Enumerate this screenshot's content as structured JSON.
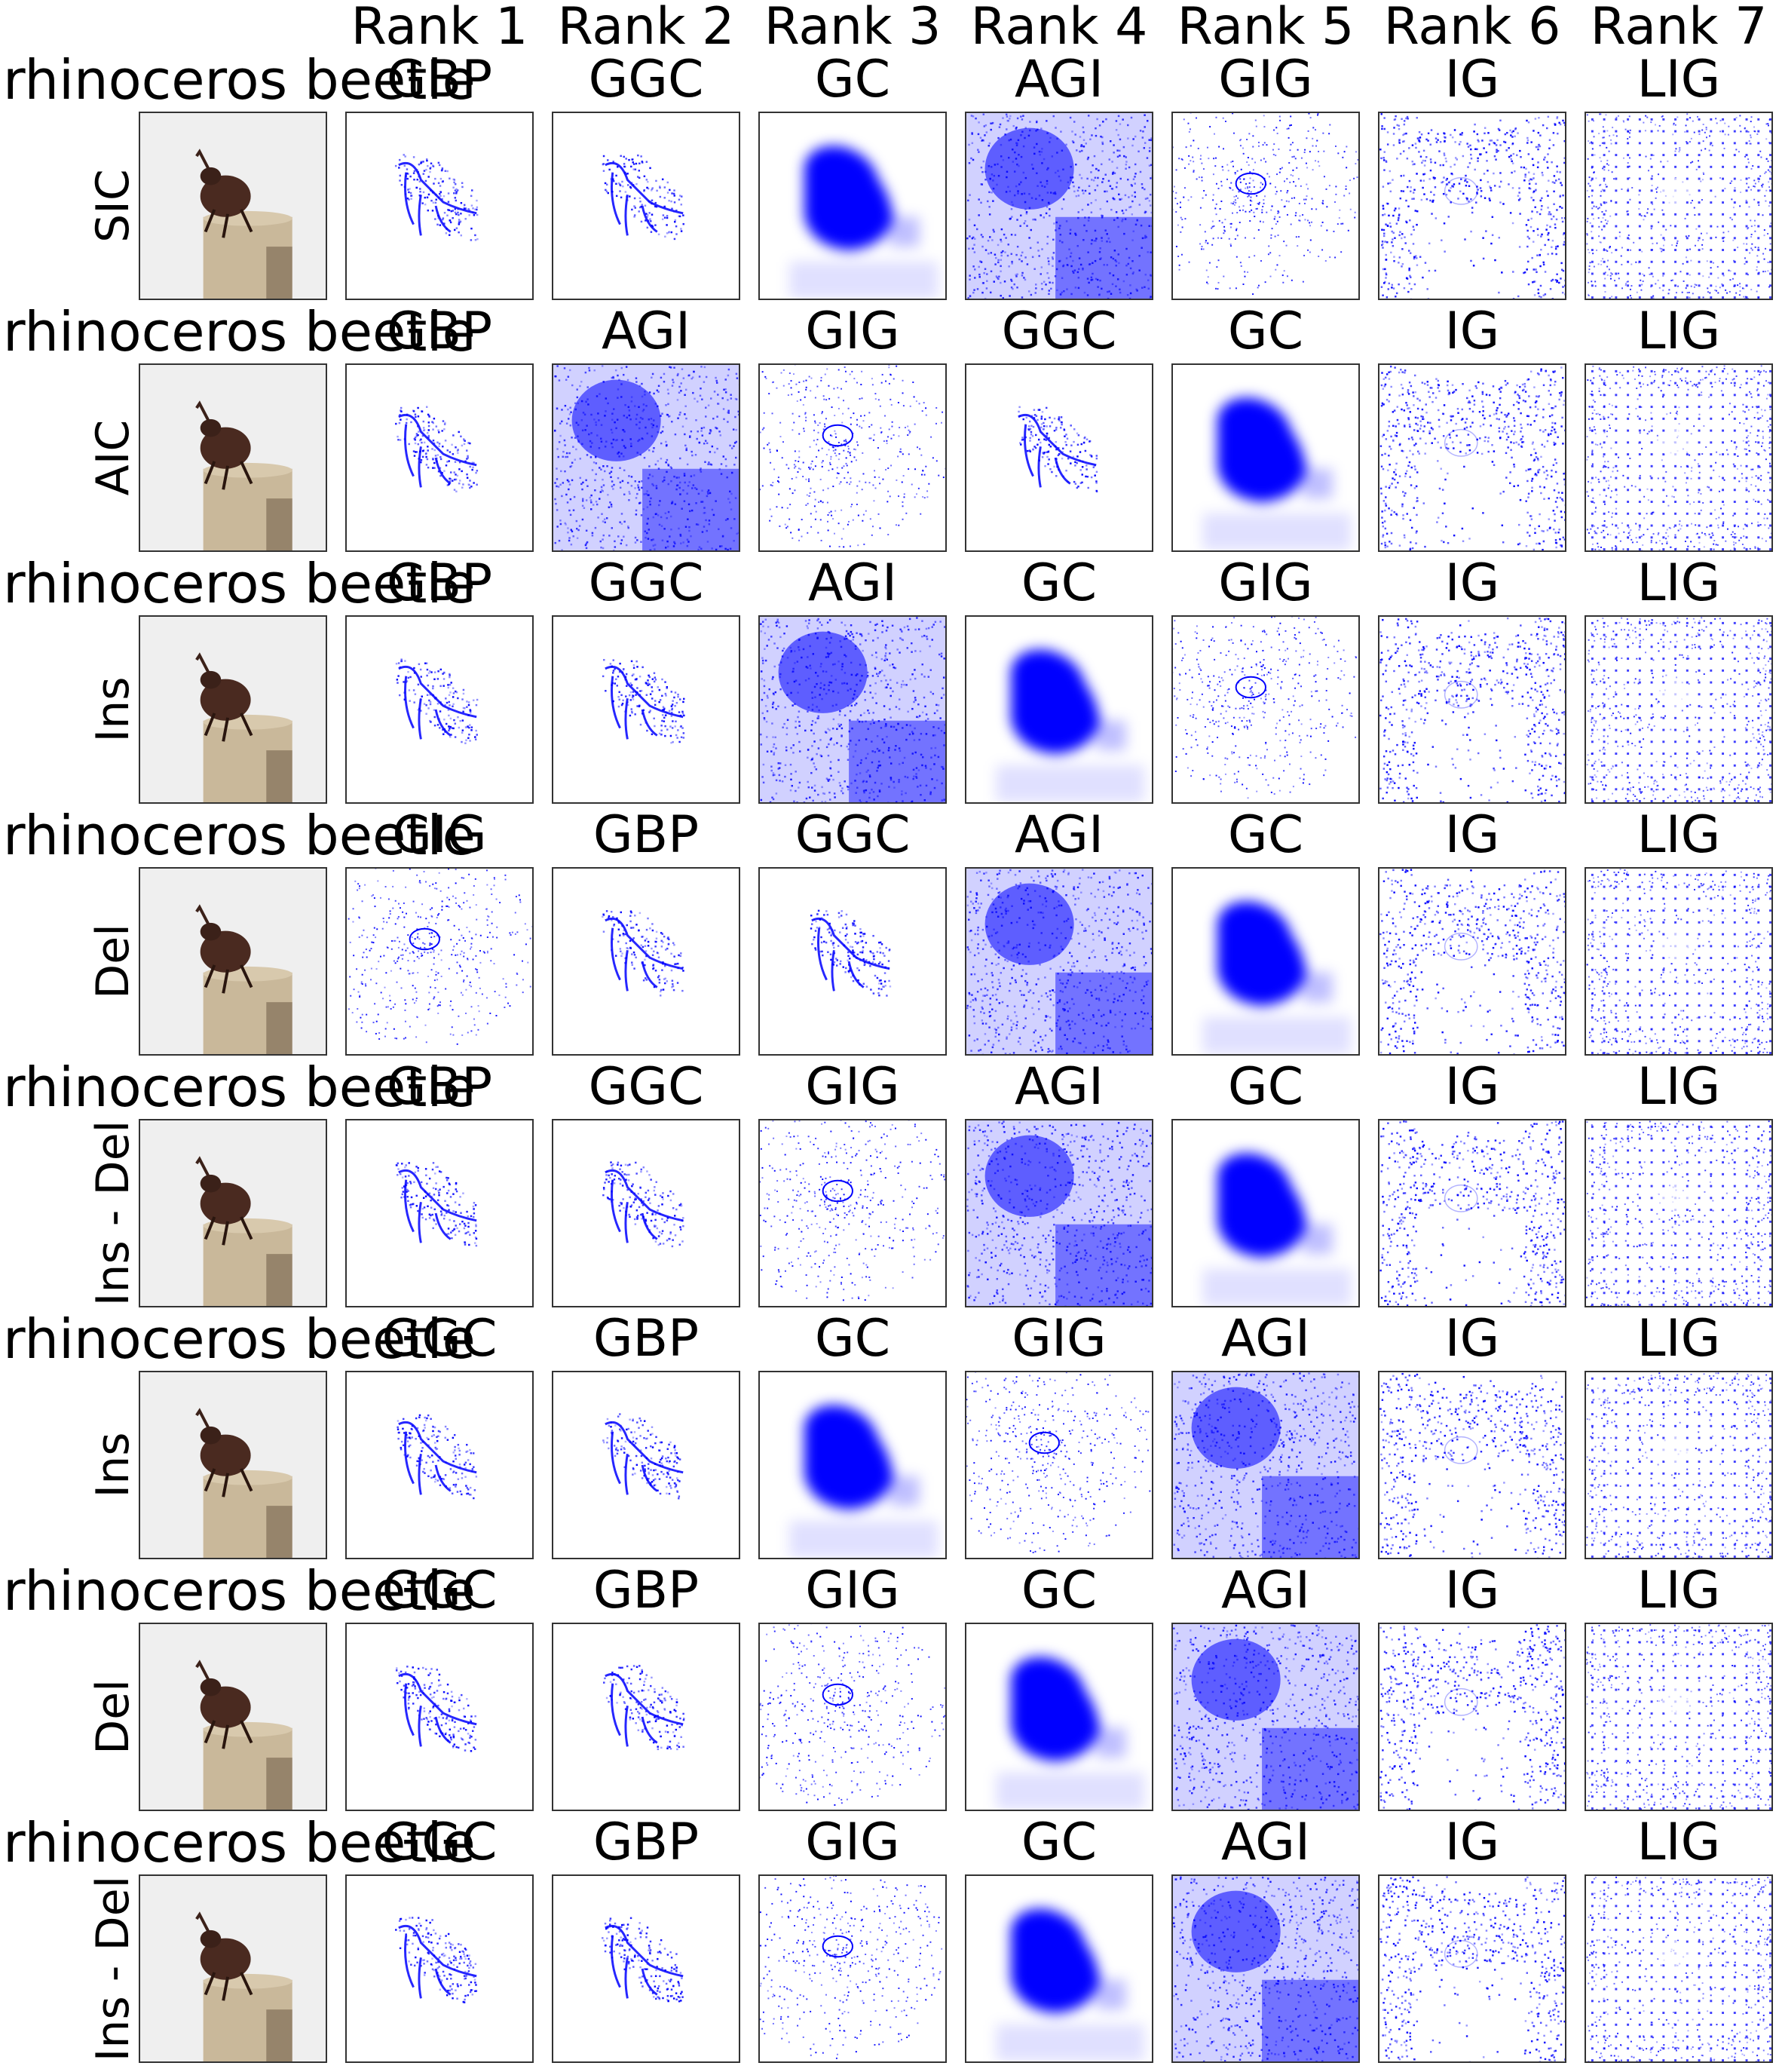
{
  "rank_headers": [
    "Rank 1",
    "Rank 2",
    "Rank 3",
    "Rank 4",
    "Rank 5",
    "Rank 6",
    "Rank 7"
  ],
  "rows": [
    {
      "class_label": "rhinoceros beetle",
      "metric": "SIC",
      "methods": [
        "GBP",
        "GGC",
        "GC",
        "AGI",
        "GIG",
        "IG",
        "LIG"
      ]
    },
    {
      "class_label": "rhinoceros beetle",
      "metric": "AIC",
      "methods": [
        "GBP",
        "AGI",
        "GIG",
        "GGC",
        "GC",
        "IG",
        "LIG"
      ]
    },
    {
      "class_label": "rhinoceros beetle",
      "metric": "Ins",
      "methods": [
        "GBP",
        "GGC",
        "AGI",
        "GC",
        "GIG",
        "IG",
        "LIG"
      ]
    },
    {
      "class_label": "rhinoceros beetle",
      "metric": "Del",
      "methods": [
        "GIG",
        "GBP",
        "GGC",
        "AGI",
        "GC",
        "IG",
        "LIG"
      ]
    },
    {
      "class_label": "rhinoceros beetle",
      "metric": "Ins - Del",
      "methods": [
        "GBP",
        "GGC",
        "GIG",
        "AGI",
        "GC",
        "IG",
        "LIG"
      ]
    },
    {
      "class_label": "rhinoceros beetle",
      "metric": "Ins",
      "methods": [
        "GGC",
        "GBP",
        "GC",
        "GIG",
        "AGI",
        "IG",
        "LIG"
      ]
    },
    {
      "class_label": "rhinoceros beetle",
      "metric": "Del",
      "methods": [
        "GGC",
        "GBP",
        "GIG",
        "GC",
        "AGI",
        "IG",
        "LIG"
      ]
    },
    {
      "class_label": "rhinoceros beetle",
      "metric": "Ins - Del",
      "methods": [
        "GGC",
        "GBP",
        "GIG",
        "GC",
        "AGI",
        "IG",
        "LIG"
      ]
    }
  ],
  "colors": {
    "saliency": "#0000ff",
    "stump": "#c9b89a",
    "beetle": "#4a2a20"
  }
}
